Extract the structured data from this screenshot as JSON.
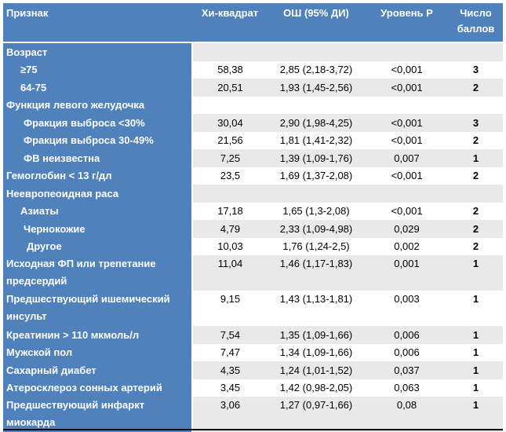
{
  "header": {
    "col_feature": "Признак",
    "col_chi": "Хи-квадрат",
    "col_or": "ОШ (95% ДИ)",
    "col_p": "Уровень Р",
    "col_points": "Число баллов"
  },
  "rows": [
    {
      "label": "Возраст",
      "chi": "",
      "or": "",
      "p": "",
      "pts": ""
    },
    {
      "label": "≥75",
      "chi": "58,38",
      "or": "2,85 (2,18-3,72)",
      "p": "<0,001",
      "pts": "3"
    },
    {
      "label": "64-75",
      "chi": "20,51",
      "or": "1,93 (1,45-2,56)",
      "p": "<0,001",
      "pts": "2"
    },
    {
      "label": "Функция левого желудочка",
      "chi": "",
      "or": "",
      "p": "",
      "pts": ""
    },
    {
      "label": "Фракция выброса <30%",
      "chi": "30,04",
      "or": "2,90 (1,98-4,25)",
      "p": "<0,001",
      "pts": "3"
    },
    {
      "label": "Фракция выброса 30-49%",
      "chi": "21,56",
      "or": "1,81 (1,41-2,32)",
      "p": "<0,001",
      "pts": "2"
    },
    {
      "label": "ФВ неизвестна",
      "chi": "7,25",
      "or": "1,39 (1,09-1,76)",
      "p": "0,007",
      "pts": "1"
    },
    {
      "label": "Гемоглобин < 13 г/дл",
      "chi": "23,5",
      "or": "1,69 (1,37-2,08)",
      "p": "<0,001",
      "pts": "2"
    },
    {
      "label": "Неевропеоидная раса",
      "chi": "",
      "or": "",
      "p": "",
      "pts": ""
    },
    {
      "label": "Азиаты",
      "chi": "17,18",
      "or": "1,65 (1,3-2,08)",
      "p": "<0,001",
      "pts": "2"
    },
    {
      "label": "Чернокожие",
      "chi": "4,79",
      "or": "2,33 (1,09-4,98)",
      "p": "0,029",
      "pts": "2"
    },
    {
      "label": "Другое",
      "chi": "10,03",
      "or": "1,76 (1,24-2,5)",
      "p": "0,002",
      "pts": "2"
    },
    {
      "label": "Исходная ФП или трепетание предсердий",
      "chi": "11,04",
      "or": "1,46 (1,17-1,83)",
      "p": "0,001",
      "pts": "1"
    },
    {
      "label": "Предшествующий ишемический инсульт",
      "chi": "9,15",
      "or": "1,43 (1,13-1,81)",
      "p": "0,003",
      "pts": "1"
    },
    {
      "label": "Креатинин > 110 мкмоль/л",
      "chi": "7,54",
      "or": "1,35 (1,09-1,66)",
      "p": "0,006",
      "pts": "1"
    },
    {
      "label": "Мужской пол",
      "chi": "7,47",
      "or": "1,34 (1,09-1,66)",
      "p": "0,006",
      "pts": "1"
    },
    {
      "label": "Сахарный диабет",
      "chi": "4,35",
      "or": "1,24 (1,01-1,52)",
      "p": "0,037",
      "pts": "1"
    },
    {
      "label": "Атеросклероз сонных артерий",
      "chi": "3,45",
      "or": "1,42 (0,98-2,05)",
      "p": "0,063",
      "pts": "1"
    },
    {
      "label": "Предшествующий инфаркт миокарда",
      "chi": "3,06",
      "or": "1,27 (0,97-1,66)",
      "p": "0,08",
      "pts": "1"
    }
  ],
  "colors": {
    "header_blue": "#4f81bd",
    "stripe_gray": "#e9e9e9"
  }
}
